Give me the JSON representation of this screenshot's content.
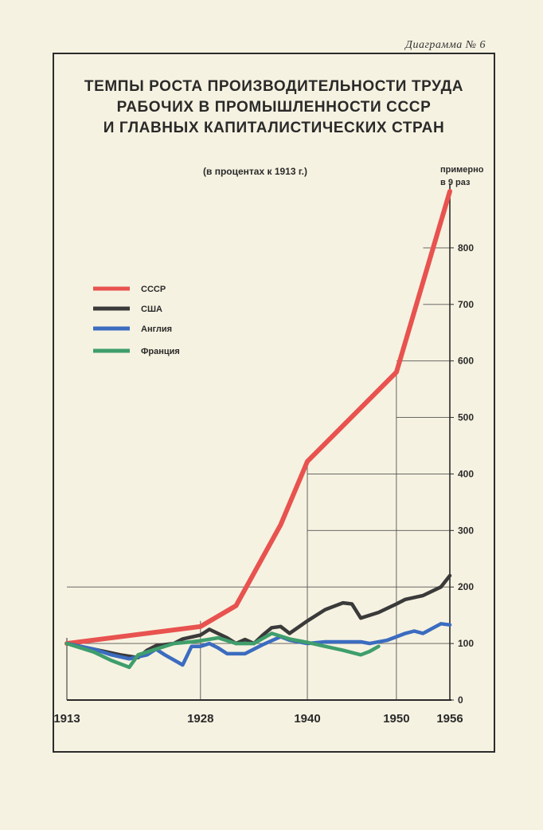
{
  "header": {
    "diagram_label": "Диаграмма № 6",
    "title_lines": [
      "ТЕМПЫ РОСТА ПРОИЗВОДИТЕЛЬНОСТИ ТРУДА",
      "РАБОЧИХ В ПРОМЫШЛЕННОСТИ СССР",
      "И ГЛАВНЫХ КАПИТАЛИСТИЧЕСКИХ СТРАН"
    ],
    "subtitle": "(в процентах к 1913 г.)",
    "annotation_line1": "примерно",
    "annotation_line2": "в 9 раз"
  },
  "chart_data": {
    "type": "line",
    "title": "ТЕМПЫ РОСТА ПРОИЗВОДИТЕЛЬНОСТИ ТРУДА РАБОЧИХ В ПРОМЫШЛЕННОСТИ СССР И ГЛАВНЫХ КАПИТАЛИСТИЧЕСКИХ СТРАН",
    "subtitle": "(в процентах к 1913 г.)",
    "annotations": [
      "примерно в 9 раз"
    ],
    "x_ticks": [
      "1913",
      "1928",
      "1940",
      "1950",
      "1956"
    ],
    "x_tick_values": [
      1913,
      1928,
      1940,
      1950,
      1956
    ],
    "y_ticks": [
      "0",
      "100",
      "200",
      "300",
      "400",
      "500",
      "600",
      "700",
      "800"
    ],
    "ylim": [
      0,
      900
    ],
    "xlim": [
      1913,
      1956
    ],
    "grid": true,
    "legend_position": "left",
    "series": [
      {
        "name": "СССР",
        "color": "#e8524f",
        "x": [
          1913,
          1928,
          1932,
          1937,
          1940,
          1950,
          1956
        ],
        "y": [
          100,
          130,
          167,
          310,
          422,
          580,
          900
        ]
      },
      {
        "name": "США",
        "color": "#3a3a3a",
        "x": [
          1913,
          1916,
          1919,
          1921,
          1922,
          1923,
          1925,
          1926,
          1928,
          1929,
          1931,
          1932,
          1933,
          1934,
          1935,
          1936,
          1937,
          1938,
          1940,
          1942,
          1944,
          1945,
          1946,
          1948,
          1950,
          1951,
          1953,
          1955,
          1956
        ],
        "y": [
          100,
          90,
          80,
          75,
          88,
          96,
          100,
          108,
          115,
          125,
          110,
          100,
          107,
          100,
          115,
          128,
          130,
          118,
          140,
          160,
          172,
          170,
          145,
          155,
          170,
          178,
          185,
          200,
          220
        ]
      },
      {
        "name": "Англия",
        "color": "#3b6cc0",
        "x": [
          1913,
          1916,
          1918,
          1920,
          1922,
          1923,
          1924,
          1926,
          1927,
          1928,
          1929,
          1930,
          1931,
          1933,
          1935,
          1937,
          1938,
          1940,
          1942,
          1944,
          1946,
          1947,
          1949,
          1951,
          1952,
          1953,
          1955,
          1956
        ],
        "y": [
          100,
          90,
          80,
          73,
          80,
          90,
          80,
          62,
          95,
          95,
          100,
          92,
          82,
          82,
          98,
          112,
          106,
          100,
          103,
          103,
          103,
          100,
          106,
          118,
          122,
          118,
          135,
          133
        ]
      },
      {
        "name": "Франция",
        "color": "#3f9e6c",
        "x": [
          1913,
          1916,
          1918,
          1920,
          1921,
          1923,
          1925,
          1927,
          1928,
          1930,
          1932,
          1934,
          1936,
          1938,
          1940,
          1942,
          1944,
          1946,
          1947,
          1948
        ],
        "y": [
          100,
          85,
          70,
          58,
          80,
          90,
          100,
          103,
          105,
          110,
          100,
          100,
          118,
          108,
          102,
          95,
          88,
          80,
          86,
          95
        ]
      }
    ]
  },
  "legend": {
    "items": [
      {
        "label": "СССР",
        "color": "#e8524f"
      },
      {
        "label": "США",
        "color": "#3a3a3a"
      },
      {
        "label": "Англия",
        "color": "#3b6cc0"
      },
      {
        "label": "Франция",
        "color": "#3f9e6c"
      }
    ]
  }
}
